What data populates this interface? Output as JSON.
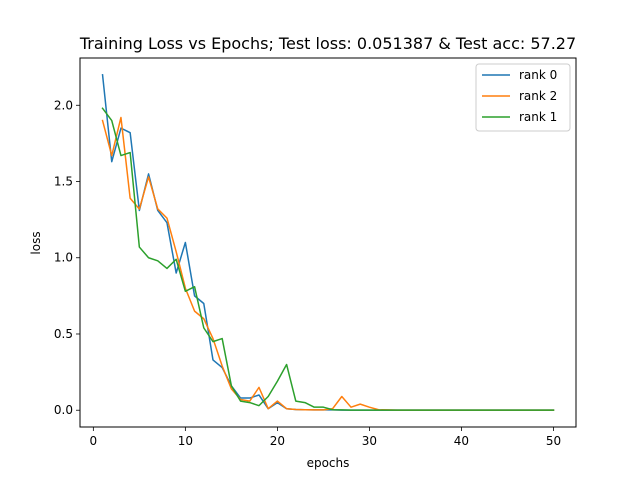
{
  "chart_data": {
    "type": "line",
    "title": "Training Loss vs Epochs; Test loss: 0.051387 & Test acc: 57.27",
    "xlabel": "epochs",
    "ylabel": "loss",
    "xlim": [
      -1.45,
      52.45
    ],
    "ylim": [
      -0.11,
      2.31
    ],
    "xticks": [
      0,
      10,
      20,
      30,
      40,
      50
    ],
    "xtick_labels": [
      "0",
      "10",
      "20",
      "30",
      "40",
      "50"
    ],
    "yticks": [
      0.0,
      0.5,
      1.0,
      1.5,
      2.0
    ],
    "ytick_labels": [
      "0.0",
      "0.5",
      "1.0",
      "1.5",
      "2.0"
    ],
    "grid": false,
    "legend_position": "top-right",
    "x": [
      1,
      2,
      3,
      4,
      5,
      6,
      7,
      8,
      9,
      10,
      11,
      12,
      13,
      14,
      15,
      16,
      17,
      18,
      19,
      20,
      21,
      22,
      23,
      24,
      25,
      26,
      27,
      28,
      29,
      30,
      31,
      32,
      33,
      34,
      35,
      36,
      37,
      38,
      39,
      40,
      41,
      42,
      43,
      44,
      45,
      46,
      47,
      48,
      49,
      50
    ],
    "series": [
      {
        "name": "rank 0",
        "color": "#1f77b4",
        "values": [
          2.2,
          1.63,
          1.85,
          1.82,
          1.31,
          1.55,
          1.31,
          1.23,
          0.9,
          1.1,
          0.75,
          0.7,
          0.33,
          0.28,
          0.16,
          0.08,
          0.08,
          0.1,
          0.01,
          0.05,
          0.01,
          0.005,
          0.003,
          0.002,
          0.002,
          0.002,
          0.001,
          0.001,
          0.001,
          0.001,
          0.001,
          0.001,
          0.001,
          0.001,
          0.001,
          0.001,
          0.001,
          0.001,
          0.001,
          0.001,
          0.001,
          0.001,
          0.001,
          0.001,
          0.001,
          0.001,
          0.001,
          0.001,
          0.001,
          0.001
        ]
      },
      {
        "name": "rank 2",
        "color": "#ff7f0e",
        "values": [
          1.9,
          1.67,
          1.92,
          1.39,
          1.32,
          1.53,
          1.32,
          1.26,
          1.04,
          0.8,
          0.65,
          0.6,
          0.47,
          0.29,
          0.14,
          0.07,
          0.06,
          0.15,
          0.01,
          0.06,
          0.01,
          0.005,
          0.003,
          0.002,
          0.002,
          0.01,
          0.09,
          0.02,
          0.04,
          0.02,
          0.003,
          0.002,
          0.001,
          0.001,
          0.001,
          0.001,
          0.001,
          0.001,
          0.001,
          0.001,
          0.001,
          0.001,
          0.001,
          0.001,
          0.001,
          0.001,
          0.001,
          0.001,
          0.001,
          0.001
        ]
      },
      {
        "name": "rank 1",
        "color": "#2ca02c",
        "values": [
          1.98,
          1.9,
          1.67,
          1.69,
          1.07,
          1.0,
          0.98,
          0.93,
          0.99,
          0.78,
          0.81,
          0.54,
          0.45,
          0.47,
          0.16,
          0.06,
          0.05,
          0.03,
          0.09,
          0.19,
          0.3,
          0.06,
          0.05,
          0.02,
          0.02,
          0.003,
          0.002,
          0.001,
          0.001,
          0.001,
          0.001,
          0.001,
          0.001,
          0.001,
          0.001,
          0.001,
          0.001,
          0.001,
          0.001,
          0.001,
          0.001,
          0.001,
          0.001,
          0.001,
          0.001,
          0.001,
          0.001,
          0.001,
          0.001,
          0.001
        ]
      }
    ]
  }
}
